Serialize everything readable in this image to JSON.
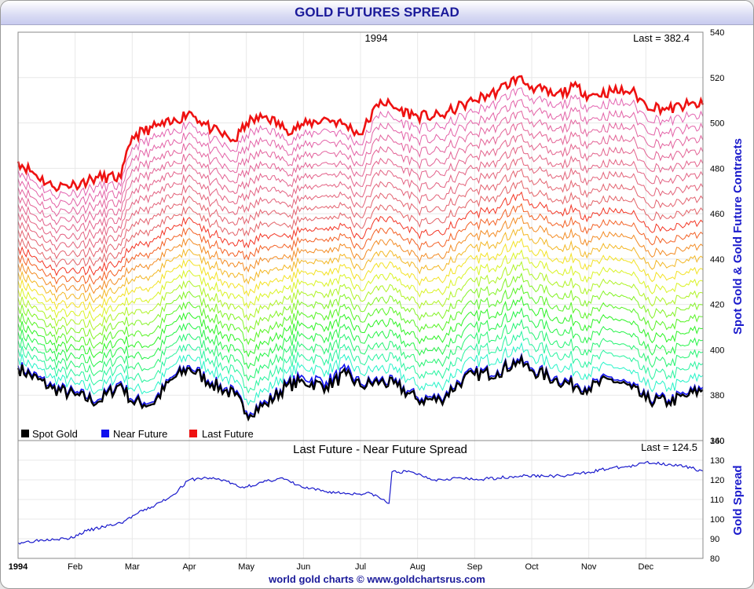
{
  "header": {
    "title": "GOLD FUTURES SPREAD"
  },
  "footer": {
    "credit": "world gold charts © www.goldchartsrus.com"
  },
  "chart_data": [
    {
      "type": "line",
      "title": "1994",
      "ylabel": "Spot Gold & Gold Future Contracts",
      "ylim": [
        360,
        540
      ],
      "yticks": [
        360,
        380,
        400,
        420,
        440,
        460,
        480,
        500,
        520,
        540
      ],
      "last_label": "Last = 382.4",
      "legend_position": "bottom-left",
      "legend": [
        {
          "name": "Spot Gold",
          "color": "#000000"
        },
        {
          "name": "Near Future",
          "color": "#1010ee"
        },
        {
          "name": "Last Future",
          "color": "#ee1111"
        }
      ],
      "x_months": [
        1,
        1.6,
        2,
        2.4,
        2.8,
        3,
        3.35,
        3.7,
        4,
        4.4,
        4.8,
        5,
        5.35,
        5.7,
        6,
        6.4,
        6.75,
        7,
        7.35,
        7.65,
        8,
        8.4,
        8.8,
        9,
        9.4,
        9.75,
        10,
        10.4,
        10.8,
        11,
        11.4,
        11.75,
        12,
        12.4,
        12.75,
        13
      ],
      "spot_gold": [
        392,
        383,
        380,
        377,
        385,
        377,
        376,
        387,
        392,
        385,
        380,
        372,
        376,
        384,
        386,
        384,
        389,
        384,
        386,
        384,
        378,
        378,
        387,
        389,
        390,
        395,
        391,
        387,
        384,
        383,
        387,
        383,
        378,
        377,
        380,
        382.4
      ],
      "near_future": [
        393,
        384,
        381,
        378,
        386,
        378,
        377,
        388,
        393,
        386,
        381,
        373,
        377,
        385,
        388,
        386,
        391,
        385,
        387,
        385,
        379,
        379,
        388,
        390,
        391,
        396,
        392,
        388,
        385,
        384,
        388,
        384,
        379,
        378,
        381,
        383.5
      ],
      "last_future": [
        483,
        472,
        473,
        476,
        476,
        494,
        498,
        500,
        505,
        497,
        492,
        500,
        503,
        497,
        499,
        502,
        499,
        495,
        510,
        506,
        503,
        503,
        508,
        510,
        514,
        520,
        516,
        512,
        516,
        512,
        514,
        514,
        508,
        506,
        508,
        508
      ]
    },
    {
      "type": "line",
      "title": "Last Future - Near Future Spread",
      "ylabel": "Gold Spread",
      "ylim": [
        80,
        140
      ],
      "yticks": [
        80,
        90,
        100,
        110,
        120,
        130,
        140
      ],
      "last_label": "Last = 124.5",
      "color": "#1a1acc",
      "x_months": [
        1,
        1.3,
        1.6,
        1.9,
        2.2,
        2.5,
        2.8,
        3.1,
        3.4,
        3.7,
        4,
        4.3,
        4.6,
        4.9,
        5.2,
        5.6,
        6,
        6.4,
        6.8,
        7.2,
        7.5,
        7.55,
        7.9,
        8.3,
        8.7,
        9,
        9.4,
        9.8,
        10.2,
        10.6,
        11,
        11.4,
        11.8,
        12,
        12.4,
        12.8,
        13
      ],
      "values": [
        88,
        89,
        90,
        90,
        94,
        96,
        98,
        103,
        107,
        112,
        120,
        121,
        120,
        116,
        118,
        121,
        116,
        114,
        113,
        113,
        108,
        124,
        124,
        120,
        121,
        120,
        121,
        122,
        122,
        122,
        124,
        126,
        127,
        129,
        128,
        126,
        124.5
      ]
    }
  ],
  "x_axis": {
    "first_label": "1994",
    "months": [
      "Feb",
      "Mar",
      "Apr",
      "May",
      "Jun",
      "Jul",
      "Aug",
      "Sep",
      "Oct",
      "Nov",
      "Dec"
    ]
  }
}
